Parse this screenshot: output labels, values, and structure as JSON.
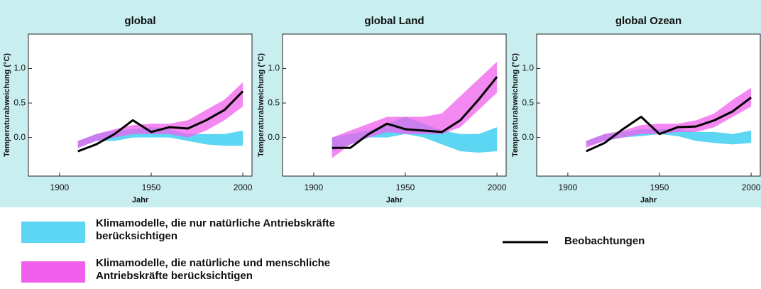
{
  "chart_data": [
    {
      "type": "band-line",
      "title": "global",
      "xlabel": "Jahr",
      "ylabel": "Temperaturabweichung (°C)",
      "x": [
        1910,
        1920,
        1930,
        1940,
        1950,
        1960,
        1970,
        1980,
        1990,
        2000
      ],
      "xlim": [
        1883,
        2005
      ],
      "xticks": [
        1900,
        1950,
        2000
      ],
      "ylim": [
        -0.56,
        1.5
      ],
      "yticks": [
        {
          "value": 0,
          "label": "0.0"
        },
        {
          "value": 0.5,
          "label": "0.5"
        },
        {
          "value": 1,
          "label": "1.0"
        }
      ],
      "series": [
        {
          "lower": [
            -0.15,
            -0.05,
            -0.05,
            0.0,
            0.0,
            0.0,
            -0.05,
            -0.1,
            -0.12,
            -0.12
          ],
          "upper": [
            -0.05,
            0.05,
            0.1,
            0.12,
            0.15,
            0.12,
            0.05,
            0.05,
            0.05,
            0.1
          ]
        },
        {
          "lower": [
            -0.15,
            -0.05,
            0.0,
            0.05,
            0.05,
            0.05,
            0.0,
            0.1,
            0.25,
            0.45
          ],
          "upper": [
            -0.05,
            0.05,
            0.12,
            0.18,
            0.2,
            0.2,
            0.25,
            0.4,
            0.55,
            0.8
          ]
        },
        {
          "values": [
            -0.2,
            -0.1,
            0.05,
            0.25,
            0.08,
            0.15,
            0.13,
            0.25,
            0.4,
            0.67
          ]
        }
      ]
    },
    {
      "type": "band-line",
      "title": "global Land",
      "xlabel": "Jahr",
      "ylabel": "Temperaturabweichung (°C)",
      "x": [
        1910,
        1920,
        1930,
        1940,
        1950,
        1960,
        1970,
        1980,
        1990,
        2000
      ],
      "xlim": [
        1883,
        2005
      ],
      "xticks": [
        1900,
        1950,
        2000
      ],
      "ylim": [
        -0.56,
        1.5
      ],
      "yticks": [
        {
          "value": 0,
          "label": "0.0"
        },
        {
          "value": 0.5,
          "label": "0.5"
        },
        {
          "value": 1,
          "label": "1.0"
        }
      ],
      "series": [
        {
          "lower": [
            -0.2,
            -0.1,
            0.0,
            0.0,
            0.05,
            0.0,
            -0.1,
            -0.2,
            -0.22,
            -0.2
          ],
          "upper": [
            0.0,
            0.05,
            0.1,
            0.2,
            0.3,
            0.2,
            0.1,
            0.05,
            0.05,
            0.15
          ]
        },
        {
          "lower": [
            -0.3,
            -0.1,
            0.0,
            0.08,
            0.05,
            0.05,
            0.05,
            0.15,
            0.4,
            0.65
          ],
          "upper": [
            0.0,
            0.1,
            0.2,
            0.3,
            0.3,
            0.3,
            0.35,
            0.6,
            0.85,
            1.1
          ]
        },
        {
          "values": [
            -0.15,
            -0.15,
            0.05,
            0.2,
            0.12,
            0.1,
            0.08,
            0.25,
            0.55,
            0.88
          ]
        }
      ]
    },
    {
      "type": "band-line",
      "title": "global Ozean",
      "xlabel": "Jahr",
      "ylabel": "Temperaturabweichung (°C)",
      "x": [
        1910,
        1920,
        1930,
        1940,
        1950,
        1960,
        1970,
        1980,
        1990,
        2000
      ],
      "xlim": [
        1883,
        2005
      ],
      "xticks": [
        1900,
        1950,
        2000
      ],
      "ylim": [
        -0.56,
        1.5
      ],
      "yticks": [
        {
          "value": 0,
          "label": "0.0"
        },
        {
          "value": 0.5,
          "label": "0.5"
        },
        {
          "value": 1,
          "label": "1.0"
        }
      ],
      "series": [
        {
          "lower": [
            -0.12,
            -0.05,
            0.0,
            0.02,
            0.05,
            0.02,
            -0.05,
            -0.08,
            -0.1,
            -0.08
          ],
          "upper": [
            -0.05,
            0.05,
            0.08,
            0.12,
            0.12,
            0.12,
            0.08,
            0.08,
            0.05,
            0.1
          ]
        },
        {
          "lower": [
            -0.15,
            -0.05,
            0.0,
            0.05,
            0.05,
            0.08,
            0.08,
            0.15,
            0.3,
            0.45
          ],
          "upper": [
            -0.05,
            0.05,
            0.1,
            0.18,
            0.2,
            0.2,
            0.25,
            0.35,
            0.55,
            0.72
          ]
        },
        {
          "values": [
            -0.2,
            -0.08,
            0.12,
            0.3,
            0.05,
            0.15,
            0.16,
            0.25,
            0.38,
            0.58
          ]
        }
      ]
    }
  ],
  "legend": [
    {
      "label": [
        "Klimamodelle, die nur natürliche Antriebskräfte",
        "berücksichtigen"
      ],
      "color": "#5cd6f2"
    },
    {
      "label": [
        "Klimamodelle, die natürliche und menschliche",
        "Antriebskräfte berücksichtigen"
      ],
      "color": "#f060ec"
    },
    {
      "label": [
        "Beobachtungen"
      ],
      "color": "#000000"
    }
  ]
}
